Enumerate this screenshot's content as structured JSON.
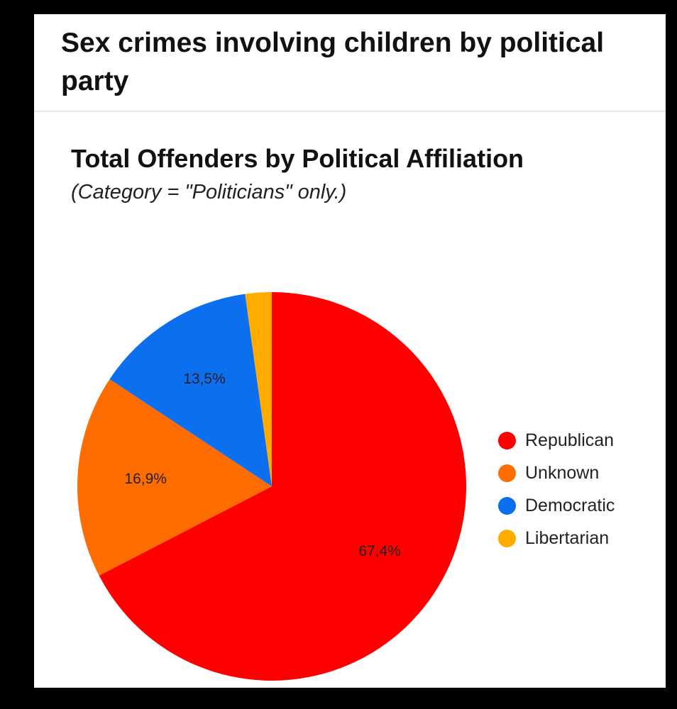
{
  "post": {
    "title": "Sex crimes involving children by political party"
  },
  "chart_data": {
    "type": "pie",
    "title": "Total Offenders by Political Affiliation",
    "subtitle": "(Category = \"Politicians\" only.)",
    "legend_position": "right",
    "slices": [
      {
        "name": "Republican",
        "value": 67.4,
        "label": "67,4%",
        "color": "#ff0000"
      },
      {
        "name": "Unknown",
        "value": 16.9,
        "label": "16,9%",
        "color": "#ff6d00"
      },
      {
        "name": "Democratic",
        "value": 13.5,
        "label": "13,5%",
        "color": "#0b6ff0"
      },
      {
        "name": "Libertarian",
        "value": 2.2,
        "label": "",
        "color": "#ffab00"
      }
    ]
  }
}
